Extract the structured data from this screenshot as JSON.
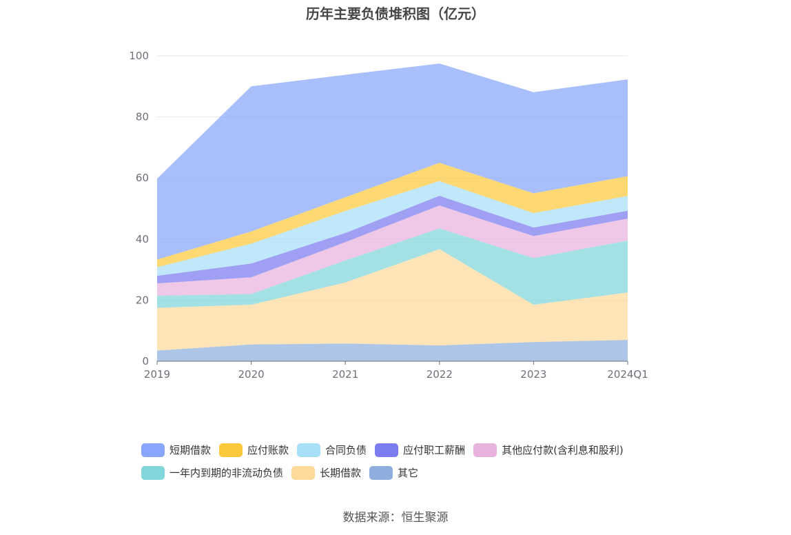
{
  "title": "历年主要负债堆积图（亿元）",
  "source": "数据来源：恒生聚源",
  "chart_data": {
    "type": "area",
    "stacked": true,
    "categories": [
      "2019",
      "2020",
      "2021",
      "2022",
      "2023",
      "2024Q1"
    ],
    "ylim": [
      0,
      100
    ],
    "yticks": [
      0,
      20,
      40,
      60,
      80,
      100
    ],
    "grid": true,
    "legend_position": "bottom",
    "series": [
      {
        "name": "其它",
        "color": "#8eaede",
        "values": [
          3.5,
          5.5,
          5.8,
          5.2,
          6.3,
          7.0
        ]
      },
      {
        "name": "长期借款",
        "color": "#fdd99a",
        "values": [
          14.0,
          13.0,
          20.0,
          31.5,
          12.2,
          15.5
        ]
      },
      {
        "name": "一年内到期的非流动负债",
        "color": "#80d6d9",
        "values": [
          4.0,
          3.5,
          7.2,
          6.8,
          15.3,
          17.0
        ]
      },
      {
        "name": "其他应付款(含利息和股利)",
        "color": "#e8b3dc",
        "values": [
          4.0,
          5.5,
          6.0,
          7.5,
          7.2,
          7.2
        ]
      },
      {
        "name": "应付职工薪酬",
        "color": "#7a7cf0",
        "values": [
          2.5,
          4.5,
          3.0,
          3.2,
          2.8,
          2.6
        ]
      },
      {
        "name": "合同负债",
        "color": "#a8dff8",
        "values": [
          2.8,
          6.5,
          7.2,
          4.8,
          4.7,
          4.8
        ]
      },
      {
        "name": "应付账款",
        "color": "#fdc93c",
        "values": [
          2.5,
          4.0,
          4.5,
          6.0,
          6.5,
          6.5
        ]
      },
      {
        "name": "短期借款",
        "color": "#88a6fb",
        "values": [
          26.5,
          47.5,
          40.1,
          32.5,
          33.1,
          31.7
        ]
      }
    ]
  },
  "legend_rows": [
    [
      0,
      1,
      2,
      3,
      4
    ],
    [
      5,
      6,
      7
    ]
  ]
}
